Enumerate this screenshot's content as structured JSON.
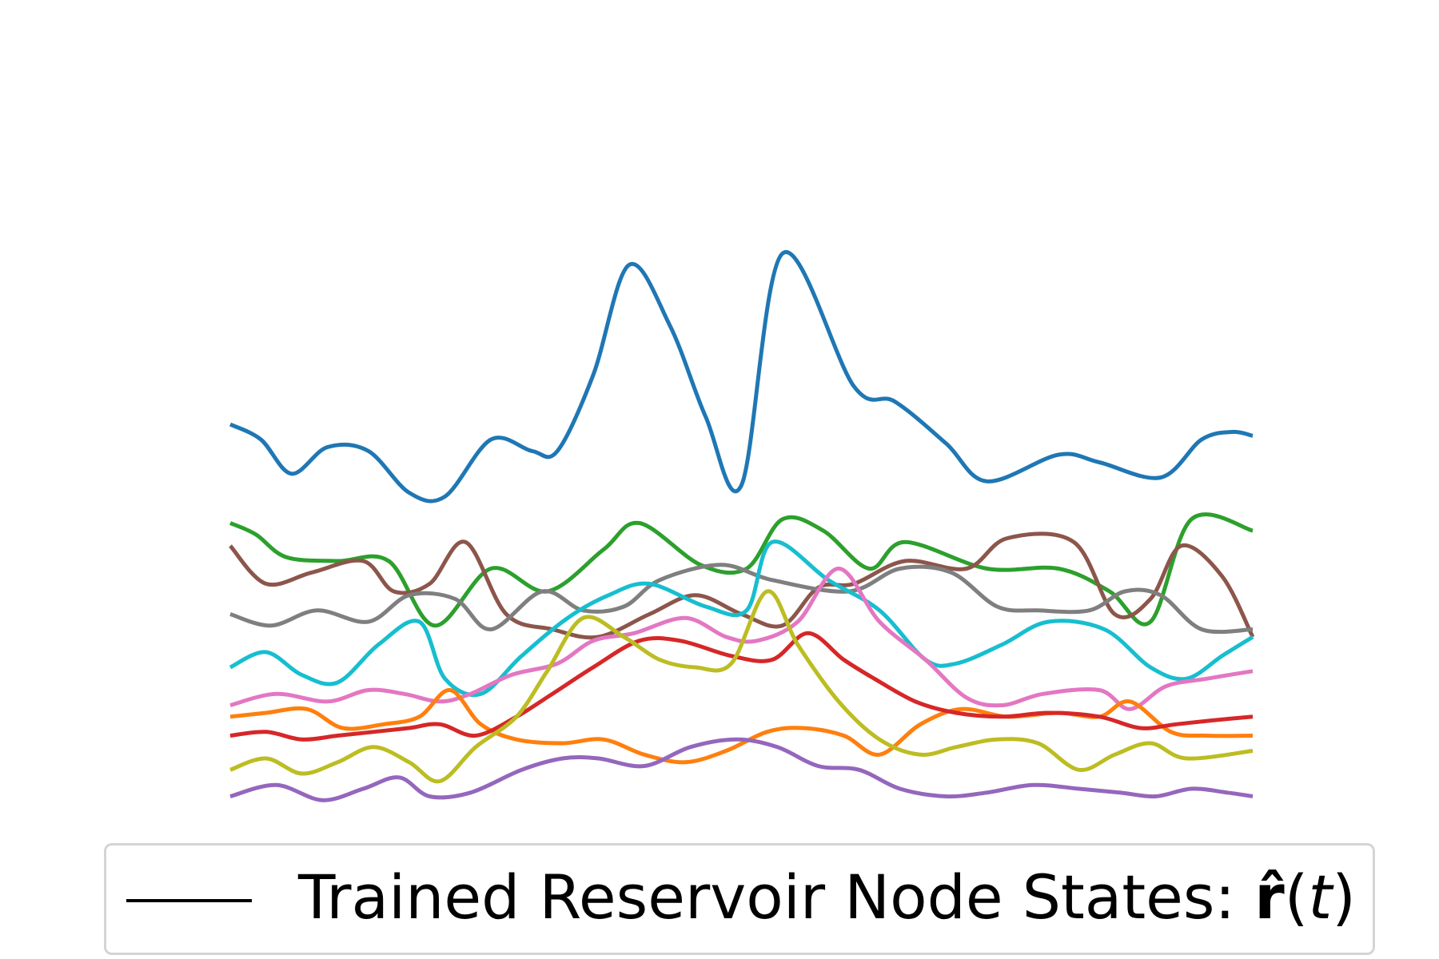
{
  "chart_data": {
    "type": "line",
    "title": "",
    "xlabel": "",
    "ylabel": "",
    "axes_visible": false,
    "grid": false,
    "xlim": [
      0,
      10
    ],
    "ylim": [
      -2.4,
      6.6
    ],
    "legend": {
      "placement": "bottom-center",
      "handle_color": "#000000",
      "label_text": "Trained Reservoir Node States: ",
      "label_symbol": "r̂",
      "label_paren_open": "(",
      "label_var": "t",
      "label_paren_close": ")"
    },
    "series": [
      {
        "color": "#1f77b4",
        "x": [
          0,
          0.3,
          0.6,
          0.95,
          1.35,
          1.75,
          2.1,
          2.55,
          2.95,
          3.2,
          3.55,
          3.9,
          4.3,
          4.65,
          5,
          5.4,
          6.1,
          6.5,
          7,
          7.4,
          8.1,
          8.5,
          9.1,
          9.5,
          9.8,
          10
        ],
        "y": [
          2.8,
          2.6,
          2.15,
          2.5,
          2.45,
          1.9,
          1.85,
          2.6,
          2.45,
          2.45,
          3.45,
          4.9,
          4.1,
          2.9,
          2.0,
          5.05,
          3.3,
          3.1,
          2.55,
          2.05,
          2.4,
          2.3,
          2.1,
          2.6,
          2.7,
          2.65
        ]
      },
      {
        "color": "#2ca02c",
        "x": [
          0,
          0.25,
          0.55,
          1.05,
          1.55,
          2.0,
          2.55,
          3.1,
          3.65,
          4.0,
          4.6,
          5.05,
          5.4,
          5.8,
          6.25,
          6.6,
          7.4,
          8.1,
          8.6,
          9.0,
          9.4,
          10
        ],
        "y": [
          1.5,
          1.35,
          1.05,
          1.0,
          1.0,
          0.15,
          0.9,
          0.6,
          1.15,
          1.5,
          0.95,
          0.9,
          1.55,
          1.4,
          0.9,
          1.25,
          0.9,
          0.9,
          0.6,
          0.2,
          1.55,
          1.4
        ]
      },
      {
        "color": "#8c564b",
        "x": [
          0,
          0.35,
          0.8,
          1.3,
          1.6,
          1.95,
          2.3,
          2.7,
          3.15,
          3.6,
          4.1,
          4.55,
          5,
          5.4,
          5.75,
          6.1,
          6.6,
          7.2,
          7.6,
          8.25,
          8.65,
          9.0,
          9.3,
          9.7,
          10
        ],
        "y": [
          1.2,
          0.7,
          0.85,
          1.0,
          0.6,
          0.7,
          1.25,
          0.3,
          0.1,
          0.0,
          0.3,
          0.55,
          0.3,
          0.15,
          0.65,
          0.7,
          1.0,
          0.9,
          1.3,
          1.25,
          0.3,
          0.5,
          1.2,
          0.8,
          0.0
        ]
      },
      {
        "color": "#7f7f7f",
        "x": [
          0,
          0.4,
          0.85,
          1.35,
          1.75,
          2.2,
          2.55,
          3.05,
          3.45,
          3.85,
          4.2,
          4.8,
          5.3,
          6.05,
          6.55,
          7.05,
          7.5,
          7.9,
          8.4,
          8.75,
          9.1,
          9.5,
          10
        ],
        "y": [
          0.3,
          0.15,
          0.35,
          0.2,
          0.55,
          0.5,
          0.1,
          0.6,
          0.35,
          0.4,
          0.75,
          0.95,
          0.75,
          0.6,
          0.9,
          0.85,
          0.4,
          0.35,
          0.35,
          0.6,
          0.55,
          0.1,
          0.1
        ]
      },
      {
        "color": "#17becf",
        "x": [
          0,
          0.35,
          0.7,
          1.05,
          1.45,
          1.85,
          2.1,
          2.45,
          2.85,
          3.3,
          3.7,
          4.1,
          4.65,
          5.05,
          5.3,
          5.85,
          6.35,
          6.8,
          7.1,
          7.55,
          8.0,
          8.55,
          9.0,
          9.35,
          9.7,
          10
        ],
        "y": [
          -0.4,
          -0.2,
          -0.5,
          -0.6,
          -0.1,
          0.2,
          -0.55,
          -0.75,
          -0.25,
          0.25,
          0.55,
          0.7,
          0.4,
          0.35,
          1.25,
          0.75,
          0.35,
          -0.3,
          -0.35,
          -0.1,
          0.2,
          0.1,
          -0.4,
          -0.55,
          -0.25,
          0.0
        ]
      },
      {
        "color": "#e377c2",
        "x": [
          0,
          0.45,
          0.95,
          1.35,
          1.7,
          2.05,
          2.35,
          2.75,
          3.2,
          3.55,
          3.95,
          4.45,
          4.85,
          5.15,
          5.55,
          5.95,
          6.35,
          6.8,
          7.2,
          7.55,
          7.95,
          8.5,
          8.8,
          9.15,
          9.55,
          10
        ],
        "y": [
          -0.9,
          -0.75,
          -0.85,
          -0.7,
          -0.75,
          -0.85,
          -0.75,
          -0.5,
          -0.35,
          -0.05,
          0.05,
          0.25,
          0.0,
          -0.05,
          0.2,
          0.9,
          0.2,
          -0.3,
          -0.8,
          -0.9,
          -0.75,
          -0.7,
          -0.95,
          -0.65,
          -0.55,
          -0.45
        ]
      },
      {
        "color": "#ff7f0e",
        "x": [
          0,
          0.35,
          0.75,
          1.1,
          1.5,
          1.85,
          2.15,
          2.45,
          2.8,
          3.25,
          3.65,
          4.05,
          4.45,
          4.85,
          5.25,
          5.6,
          6.0,
          6.35,
          6.75,
          7.15,
          7.6,
          8.1,
          8.5,
          8.8,
          9.2,
          9.55,
          10
        ],
        "y": [
          -1.05,
          -1.0,
          -0.95,
          -1.2,
          -1.15,
          -1.05,
          -0.7,
          -1.15,
          -1.35,
          -1.4,
          -1.35,
          -1.55,
          -1.65,
          -1.5,
          -1.25,
          -1.2,
          -1.3,
          -1.55,
          -1.15,
          -0.95,
          -1.05,
          -1.0,
          -1.05,
          -0.85,
          -1.25,
          -1.3,
          -1.3
        ]
      },
      {
        "color": "#d62728",
        "x": [
          0,
          0.35,
          0.7,
          1.05,
          1.4,
          1.75,
          2.05,
          2.4,
          2.8,
          3.15,
          3.55,
          4.0,
          4.4,
          4.9,
          5.3,
          5.65,
          6.0,
          6.3,
          6.7,
          7.1,
          7.55,
          8.0,
          8.5,
          8.9,
          9.25,
          9.6,
          10
        ],
        "y": [
          -1.3,
          -1.25,
          -1.35,
          -1.3,
          -1.25,
          -1.2,
          -1.15,
          -1.3,
          -1.05,
          -0.75,
          -0.4,
          -0.05,
          -0.05,
          -0.25,
          -0.3,
          0.05,
          -0.3,
          -0.55,
          -0.85,
          -1.0,
          -1.05,
          -1.0,
          -1.05,
          -1.2,
          -1.15,
          -1.1,
          -1.05
        ]
      },
      {
        "color": "#bcbd22",
        "x": [
          0,
          0.35,
          0.7,
          1.05,
          1.4,
          1.75,
          2.05,
          2.4,
          2.8,
          3.1,
          3.45,
          3.85,
          4.2,
          4.55,
          4.9,
          5.25,
          5.55,
          5.95,
          6.35,
          6.75,
          7.1,
          7.5,
          7.9,
          8.3,
          8.65,
          9.0,
          9.35,
          10
        ],
        "y": [
          -1.75,
          -1.6,
          -1.8,
          -1.65,
          -1.45,
          -1.65,
          -1.9,
          -1.45,
          -1.05,
          -0.45,
          0.25,
          0.0,
          -0.3,
          -0.4,
          -0.35,
          0.6,
          -0.1,
          -0.85,
          -1.35,
          -1.55,
          -1.45,
          -1.35,
          -1.4,
          -1.75,
          -1.55,
          -1.4,
          -1.6,
          -1.5
        ]
      },
      {
        "color": "#9467bd",
        "x": [
          0,
          0.45,
          0.9,
          1.3,
          1.65,
          1.95,
          2.35,
          2.85,
          3.25,
          3.6,
          4.05,
          4.5,
          4.95,
          5.35,
          5.75,
          6.15,
          6.55,
          7.0,
          7.4,
          7.85,
          8.3,
          8.7,
          9.05,
          9.4,
          9.75,
          10
        ],
        "y": [
          -2.1,
          -1.95,
          -2.15,
          -2.0,
          -1.85,
          -2.1,
          -2.05,
          -1.75,
          -1.6,
          -1.6,
          -1.7,
          -1.45,
          -1.35,
          -1.45,
          -1.7,
          -1.75,
          -2.0,
          -2.1,
          -2.05,
          -1.95,
          -2.0,
          -2.05,
          -2.1,
          -2.0,
          -2.05,
          -2.1
        ]
      }
    ]
  }
}
